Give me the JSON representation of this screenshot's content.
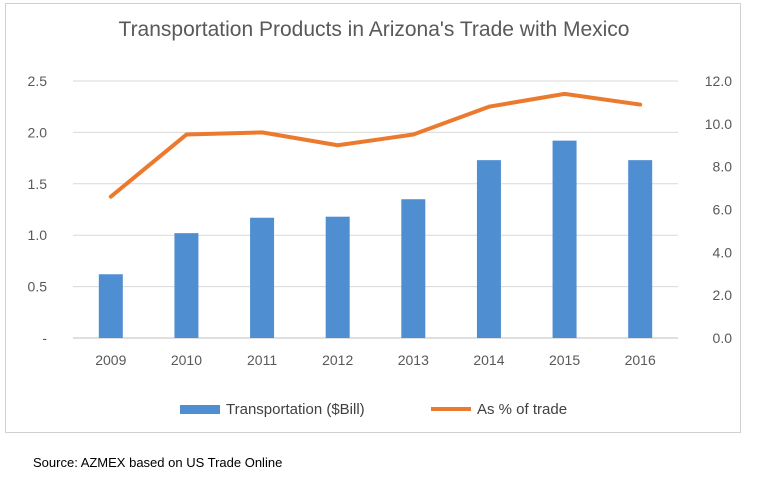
{
  "chart_data": {
    "type": "bar",
    "title": "Transportation Products in Arizona's Trade with Mexico",
    "categories": [
      "2009",
      "2010",
      "2011",
      "2012",
      "2013",
      "2014",
      "2015",
      "2016"
    ],
    "series": [
      {
        "name": "Transportation ($Bill)",
        "type": "bar",
        "axis": "left",
        "color": "#4f8fd1",
        "values": [
          0.62,
          1.02,
          1.17,
          1.18,
          1.35,
          1.73,
          1.92,
          1.73
        ]
      },
      {
        "name": "As % of trade",
        "type": "line",
        "axis": "right",
        "color": "#ec7a2e",
        "values": [
          6.6,
          9.5,
          9.6,
          9.0,
          9.5,
          10.8,
          11.4,
          10.9
        ]
      }
    ],
    "y_left": {
      "ylim": [
        0,
        2.5
      ],
      "ticks": [
        "-",
        "0.5",
        "1.0",
        "1.5",
        "2.0",
        "2.5"
      ]
    },
    "y_right": {
      "ylim": [
        0,
        12
      ],
      "ticks": [
        "0.0",
        "2.0",
        "4.0",
        "6.0",
        "8.0",
        "10.0",
        "12.0"
      ]
    },
    "grid": true,
    "legend_position": "bottom"
  },
  "source": "Source: AZMEX based on US Trade Online"
}
